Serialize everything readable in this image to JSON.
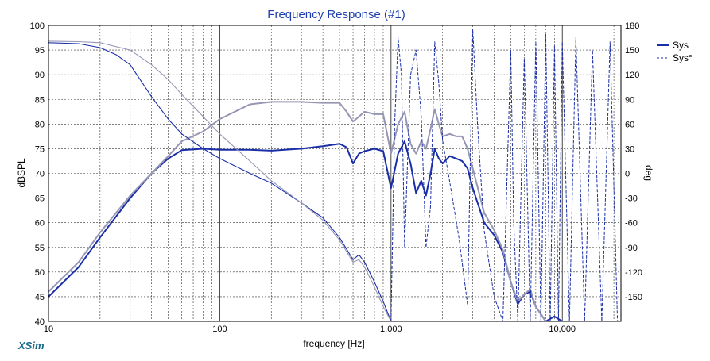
{
  "chart_data": {
    "type": "line",
    "title": "Frequency Response (#1)",
    "xlabel": "frequency [Hz]",
    "ylabel": "dBSPL",
    "y2label": "deg",
    "watermark": "XSim",
    "x_scale": "log",
    "xlim": [
      10,
      22000
    ],
    "ylim": [
      40,
      100
    ],
    "y2lim": [
      -180,
      180
    ],
    "x_tick_labels": [
      {
        "value": 10,
        "label": "10"
      },
      {
        "value": 100,
        "label": "100"
      },
      {
        "value": 1000,
        "label": "1,000"
      },
      {
        "value": 10000,
        "label": "10,000"
      }
    ],
    "y_ticks": [
      40,
      45,
      50,
      55,
      60,
      65,
      70,
      75,
      80,
      85,
      90,
      95,
      100
    ],
    "y2_ticks": [
      -150,
      -120,
      -90,
      -60,
      -30,
      0,
      30,
      60,
      90,
      120,
      150,
      180
    ],
    "grid": true,
    "legend_position": "top-right",
    "legend": [
      {
        "label": "Sys",
        "style": "solid",
        "color": "#1a2ea8"
      },
      {
        "label": "Sys°",
        "style": "dashed",
        "color": "#1a2ea8"
      }
    ],
    "colors": {
      "axis_text": "#000000",
      "title": "#1f3fb0",
      "grid": "#333333",
      "sys": "#1a2ea8",
      "sys_light": "#9696b4",
      "watermark": "#1a6b8a"
    },
    "series": [
      {
        "name": "Sys",
        "axis": "left",
        "style": "solid",
        "role": "magnitude",
        "points": [
          [
            10,
            45
          ],
          [
            15,
            51
          ],
          [
            20,
            57
          ],
          [
            30,
            65
          ],
          [
            40,
            70
          ],
          [
            50,
            73
          ],
          [
            60,
            74.7
          ],
          [
            80,
            75
          ],
          [
            100,
            74.8
          ],
          [
            150,
            74.8
          ],
          [
            200,
            74.6
          ],
          [
            300,
            75
          ],
          [
            400,
            75.5
          ],
          [
            500,
            76
          ],
          [
            550,
            75.3
          ],
          [
            600,
            72
          ],
          [
            650,
            74
          ],
          [
            700,
            74.5
          ],
          [
            800,
            75
          ],
          [
            900,
            74.5
          ],
          [
            1000,
            67
          ],
          [
            1100,
            74
          ],
          [
            1200,
            76.5
          ],
          [
            1300,
            72
          ],
          [
            1400,
            66
          ],
          [
            1500,
            68.5
          ],
          [
            1600,
            65.5
          ],
          [
            1700,
            70
          ],
          [
            1800,
            75
          ],
          [
            1900,
            73
          ],
          [
            2000,
            72
          ],
          [
            2200,
            73.5
          ],
          [
            2400,
            73
          ],
          [
            2600,
            72.5
          ],
          [
            2800,
            71
          ],
          [
            3000,
            67
          ],
          [
            3500,
            60
          ],
          [
            4000,
            57.5
          ],
          [
            4500,
            54
          ],
          [
            5000,
            48
          ],
          [
            5500,
            43.5
          ],
          [
            6000,
            45.5
          ],
          [
            6500,
            46
          ],
          [
            7000,
            43
          ],
          [
            8000,
            40
          ],
          [
            9000,
            41
          ],
          [
            10000,
            40
          ]
        ]
      },
      {
        "name": "",
        "axis": "left",
        "style": "solid",
        "role": "magnitude",
        "light": true,
        "points": [
          [
            10,
            46
          ],
          [
            15,
            52
          ],
          [
            20,
            58
          ],
          [
            30,
            65.5
          ],
          [
            40,
            70
          ],
          [
            50,
            73.5
          ],
          [
            60,
            76.5
          ],
          [
            80,
            78.5
          ],
          [
            100,
            81
          ],
          [
            150,
            84
          ],
          [
            200,
            84.5
          ],
          [
            300,
            84.5
          ],
          [
            400,
            84.3
          ],
          [
            500,
            84.3
          ],
          [
            550,
            82.5
          ],
          [
            600,
            80.5
          ],
          [
            650,
            81.5
          ],
          [
            700,
            82.5
          ],
          [
            800,
            82
          ],
          [
            900,
            82
          ],
          [
            1000,
            74
          ],
          [
            1100,
            80
          ],
          [
            1200,
            82.5
          ],
          [
            1300,
            76
          ],
          [
            1400,
            74
          ],
          [
            1500,
            76.5
          ],
          [
            1600,
            75
          ],
          [
            1700,
            79
          ],
          [
            1800,
            83
          ],
          [
            1900,
            80
          ],
          [
            2000,
            77.5
          ],
          [
            2200,
            78
          ],
          [
            2400,
            77.5
          ],
          [
            2600,
            77.5
          ],
          [
            2800,
            75
          ],
          [
            3000,
            71
          ],
          [
            3500,
            62
          ],
          [
            4000,
            58.5
          ],
          [
            4500,
            54.5
          ],
          [
            5000,
            48
          ],
          [
            5500,
            44
          ],
          [
            6000,
            45.5
          ],
          [
            6500,
            46.5
          ],
          [
            7000,
            43
          ],
          [
            8000,
            40
          ]
        ]
      },
      {
        "name": "",
        "axis": "left",
        "style": "solid",
        "role": "magnitude",
        "points": [
          [
            10,
            96.5
          ],
          [
            15,
            96.3
          ],
          [
            20,
            95.5
          ],
          [
            25,
            94
          ],
          [
            30,
            92
          ],
          [
            40,
            85.5
          ],
          [
            50,
            81
          ],
          [
            60,
            78
          ],
          [
            80,
            75
          ],
          [
            100,
            73
          ],
          [
            150,
            70
          ],
          [
            200,
            68
          ],
          [
            300,
            64
          ],
          [
            400,
            61
          ],
          [
            500,
            57
          ],
          [
            600,
            52.5
          ],
          [
            650,
            53.5
          ],
          [
            700,
            52
          ],
          [
            800,
            48
          ],
          [
            900,
            44
          ],
          [
            1000,
            40
          ]
        ]
      },
      {
        "name": "",
        "axis": "left",
        "style": "solid",
        "role": "magnitude",
        "light": true,
        "points": [
          [
            10,
            96.8
          ],
          [
            15,
            96.7
          ],
          [
            20,
            96.5
          ],
          [
            30,
            95
          ],
          [
            40,
            92
          ],
          [
            50,
            89
          ],
          [
            60,
            86
          ],
          [
            80,
            81.5
          ],
          [
            100,
            78
          ],
          [
            150,
            72.5
          ],
          [
            200,
            68.5
          ],
          [
            300,
            64
          ],
          [
            400,
            60.5
          ],
          [
            500,
            56.5
          ],
          [
            600,
            52
          ],
          [
            650,
            52.5
          ],
          [
            700,
            51
          ],
          [
            800,
            47
          ],
          [
            900,
            43
          ],
          [
            1000,
            40
          ]
        ]
      },
      {
        "name": "Sys°",
        "axis": "right",
        "style": "dashed",
        "role": "phase",
        "points": [
          [
            1000,
            -180
          ],
          [
            1050,
            60
          ],
          [
            1100,
            165
          ],
          [
            1150,
            120
          ],
          [
            1200,
            -90
          ],
          [
            1300,
            120
          ],
          [
            1400,
            150
          ],
          [
            1500,
            70
          ],
          [
            1600,
            -90
          ],
          [
            1700,
            -40
          ],
          [
            1800,
            160
          ],
          [
            1900,
            110
          ],
          [
            2000,
            40
          ],
          [
            2200,
            -10
          ],
          [
            2500,
            -80
          ],
          [
            2800,
            -160
          ],
          [
            3000,
            175
          ],
          [
            3200,
            60
          ],
          [
            3500,
            -70
          ],
          [
            4000,
            -150
          ],
          [
            4500,
            -180
          ],
          [
            5000,
            150
          ],
          [
            5200,
            -60
          ],
          [
            5500,
            -180
          ],
          [
            6000,
            140
          ],
          [
            6500,
            -180
          ],
          [
            7000,
            160
          ],
          [
            7500,
            -180
          ],
          [
            8000,
            170
          ],
          [
            8500,
            -180
          ],
          [
            9000,
            155
          ],
          [
            9500,
            -180
          ],
          [
            10000,
            160
          ],
          [
            11000,
            -180
          ],
          [
            12000,
            165
          ],
          [
            13500,
            -180
          ],
          [
            15000,
            150
          ],
          [
            17000,
            -180
          ],
          [
            19000,
            160
          ],
          [
            21000,
            -180
          ]
        ]
      }
    ]
  }
}
